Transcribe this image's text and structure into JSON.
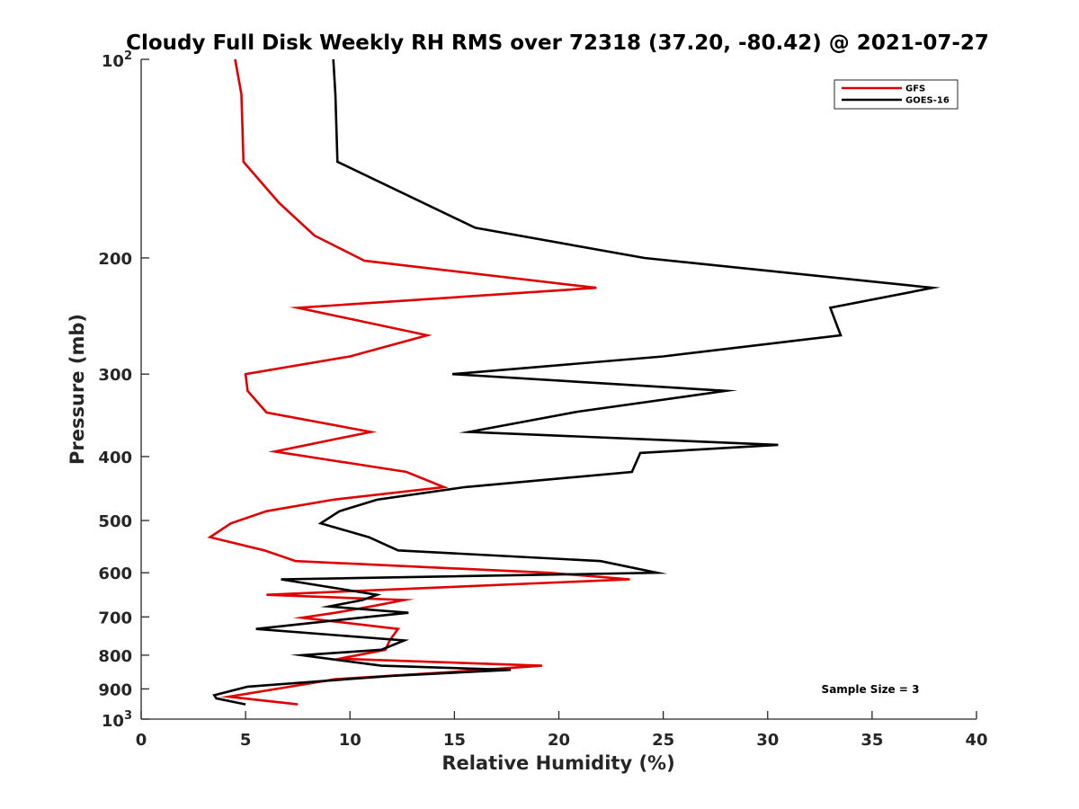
{
  "chart_data": {
    "type": "line",
    "title": "Cloudy Full Disk Weekly RH RMS over 72318 (37.20, -80.42) @ 2021-07-27",
    "xlabel": "Relative Humidity (%)",
    "ylabel": "Pressure (mb)",
    "xlim": [
      0,
      40
    ],
    "ylim": [
      100,
      1000
    ],
    "yscale": "log",
    "y_reversed": true,
    "x_ticks": [
      0,
      5,
      10,
      15,
      20,
      25,
      30,
      35,
      40
    ],
    "x_tick_labels": [
      "0",
      "5",
      "10",
      "15",
      "20",
      "25",
      "30",
      "35",
      "40"
    ],
    "y_ticks": [
      200,
      300,
      400,
      500,
      600,
      700,
      800,
      900
    ],
    "y_tick_labels": [
      "200",
      "300",
      "400",
      "500",
      "600",
      "700",
      "800",
      "900"
    ],
    "y_power_ticks": [
      {
        "value": 100,
        "base": "10",
        "exp": "2"
      },
      {
        "value": 1000,
        "base": "10",
        "exp": "3"
      }
    ],
    "grid": false,
    "legend_position": "top-right",
    "annotation": "Sample Size = 3",
    "series": [
      {
        "name": "GFS",
        "color": "#e00000",
        "x": [
          4.5,
          4.8,
          4.9,
          6.6,
          8.3,
          10.7,
          21.8,
          7.5,
          13.7,
          10.0,
          5.0,
          5.1,
          6.0,
          11.0,
          6.4,
          12.7,
          14.5,
          9.2,
          6.0,
          4.3,
          3.3,
          5.9,
          7.4,
          19.5,
          23.4,
          6.0,
          12.6,
          11.0,
          9.3,
          7.7,
          12.3,
          11.9,
          11.7,
          9.5,
          19.2,
          15.0,
          9.3,
          4.2,
          7.5
        ],
        "y": [
          100,
          113,
          143,
          165,
          185,
          202,
          222,
          238,
          262,
          282,
          300,
          318,
          343,
          367,
          393,
          422,
          445,
          465,
          484,
          505,
          530,
          555,
          576,
          600,
          614,
          648,
          660,
          675,
          690,
          702,
          730,
          760,
          785,
          810,
          830,
          848,
          870,
          925,
          950
        ]
      },
      {
        "name": "GOES-16",
        "color": "#000000",
        "x": [
          9.2,
          9.3,
          9.4,
          16.0,
          24.1,
          37.9,
          33.0,
          33.5,
          25.0,
          14.9,
          28.0,
          20.9,
          15.7,
          30.5,
          23.9,
          23.5,
          15.5,
          11.3,
          9.5,
          8.6,
          10.9,
          12.3,
          22.0,
          24.7,
          6.7,
          11.3,
          10.6,
          9.0,
          12.8,
          10.5,
          5.5,
          12.6,
          11.5,
          7.7,
          11.5,
          17.7,
          12.0,
          5.1,
          3.5,
          3.6,
          5.0
        ],
        "y": [
          100,
          113,
          143,
          180,
          200,
          222,
          238,
          262,
          282,
          300,
          318,
          342,
          367,
          384,
          395,
          422,
          445,
          465,
          484,
          505,
          530,
          555,
          576,
          600,
          614,
          648,
          660,
          675,
          690,
          702,
          730,
          760,
          785,
          800,
          830,
          842,
          860,
          893,
          920,
          930,
          950
        ]
      }
    ]
  }
}
